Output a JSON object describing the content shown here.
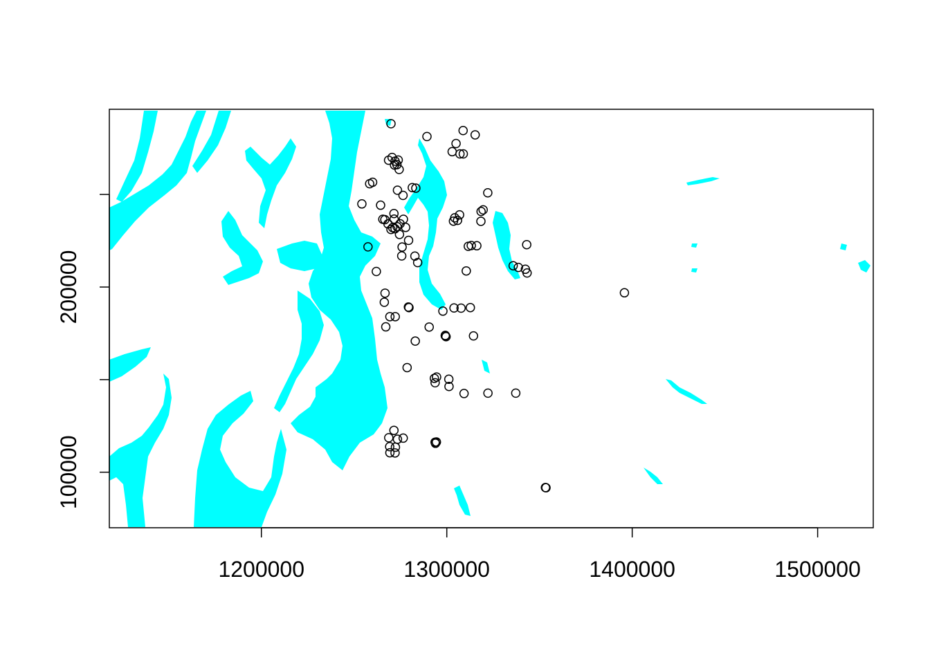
{
  "chart_data": {
    "type": "scatter",
    "title": "",
    "xlabel": "",
    "ylabel": "",
    "xlim": [
      1118000,
      1530000
    ],
    "ylim": [
      70000,
      296000
    ],
    "x_ticks": [
      1200000,
      1300000,
      1400000,
      1500000
    ],
    "x_tick_labels": [
      "1200000",
      "1300000",
      "1400000",
      "1500000"
    ],
    "y_ticks": [
      100000,
      150000,
      200000,
      250000
    ],
    "y_tick_labels": [
      "100000",
      "",
      "200000",
      ""
    ],
    "grid": false,
    "legend": "none",
    "colors": {
      "water": "#00ffff",
      "points": "#000000",
      "axes": "#000000"
    },
    "background_layer": "water bodies (cyan polygons)",
    "series": [
      {
        "marker": "open-circle",
        "points": [
          [
            1269900,
            288200
          ],
          [
            1289300,
            281300
          ],
          [
            1308800,
            284500
          ],
          [
            1315300,
            282200
          ],
          [
            1305000,
            277500
          ],
          [
            1302900,
            273100
          ],
          [
            1307100,
            271900
          ],
          [
            1308900,
            271900
          ],
          [
            1270500,
            270000
          ],
          [
            1268600,
            268500
          ],
          [
            1272100,
            268000
          ],
          [
            1273800,
            268600
          ],
          [
            1273100,
            266100
          ],
          [
            1271800,
            265900
          ],
          [
            1322100,
            250900
          ],
          [
            1274300,
            263500
          ],
          [
            1260000,
            256600
          ],
          [
            1258400,
            255800
          ],
          [
            1281400,
            253700
          ],
          [
            1283300,
            253400
          ],
          [
            1273400,
            252300
          ],
          [
            1276400,
            249500
          ],
          [
            1254200,
            244900
          ],
          [
            1264300,
            244200
          ],
          [
            1319600,
            241700
          ],
          [
            1318500,
            240800
          ],
          [
            1306900,
            239000
          ],
          [
            1304300,
            237400
          ],
          [
            1271500,
            239700
          ],
          [
            1303600,
            235600
          ],
          [
            1305800,
            236000
          ],
          [
            1266600,
            236400
          ],
          [
            1265500,
            236600
          ],
          [
            1268300,
            234100
          ],
          [
            1271600,
            236700
          ],
          [
            1276600,
            236600
          ],
          [
            1318400,
            235500
          ],
          [
            1270800,
            232100
          ],
          [
            1273200,
            232600
          ],
          [
            1274800,
            234200
          ],
          [
            1277800,
            232200
          ],
          [
            1269900,
            231100
          ],
          [
            1272100,
            231500
          ],
          [
            1274500,
            228400
          ],
          [
            1279400,
            225200
          ],
          [
            1316200,
            222300
          ],
          [
            1313200,
            222400
          ],
          [
            1311600,
            222000
          ],
          [
            1343100,
            222900
          ],
          [
            1257500,
            221700
          ],
          [
            1275900,
            221600
          ],
          [
            1275700,
            216800
          ],
          [
            1282800,
            216700
          ],
          [
            1284300,
            213200
          ],
          [
            1335800,
            211500
          ],
          [
            1338600,
            210600
          ],
          [
            1342400,
            209600
          ],
          [
            1343300,
            207600
          ],
          [
            1310500,
            208700
          ],
          [
            1262000,
            208400
          ],
          [
            1395800,
            196900
          ],
          [
            1266700,
            196700
          ],
          [
            1266300,
            191800
          ],
          [
            1279300,
            189200
          ],
          [
            1279600,
            188900
          ],
          [
            1312700,
            188900
          ],
          [
            1307700,
            188600
          ],
          [
            1303900,
            188700
          ],
          [
            1297900,
            187000
          ],
          [
            1269300,
            184000
          ],
          [
            1272200,
            184000
          ],
          [
            1267100,
            178500
          ],
          [
            1290500,
            178400
          ],
          [
            1299200,
            173600
          ],
          [
            1299600,
            173200
          ],
          [
            1299200,
            173900
          ],
          [
            1314400,
            173600
          ],
          [
            1283000,
            170800
          ],
          [
            1278600,
            156500
          ],
          [
            1293300,
            150700
          ],
          [
            1293700,
            148300
          ],
          [
            1301100,
            150200
          ],
          [
            1294500,
            151400
          ],
          [
            1301200,
            146300
          ],
          [
            1309300,
            142500
          ],
          [
            1322200,
            142700
          ],
          [
            1337200,
            142700
          ],
          [
            1271500,
            122600
          ],
          [
            1268700,
            118600
          ],
          [
            1273400,
            117800
          ],
          [
            1276500,
            118400
          ],
          [
            1293700,
            116200
          ],
          [
            1294400,
            116300
          ],
          [
            1269200,
            113800
          ],
          [
            1272300,
            113500
          ],
          [
            1269300,
            110500
          ],
          [
            1272100,
            110400
          ],
          [
            1353200,
            91700
          ],
          [
            1353500,
            91600
          ],
          [
            1293900,
            115600
          ]
        ]
      }
    ]
  }
}
